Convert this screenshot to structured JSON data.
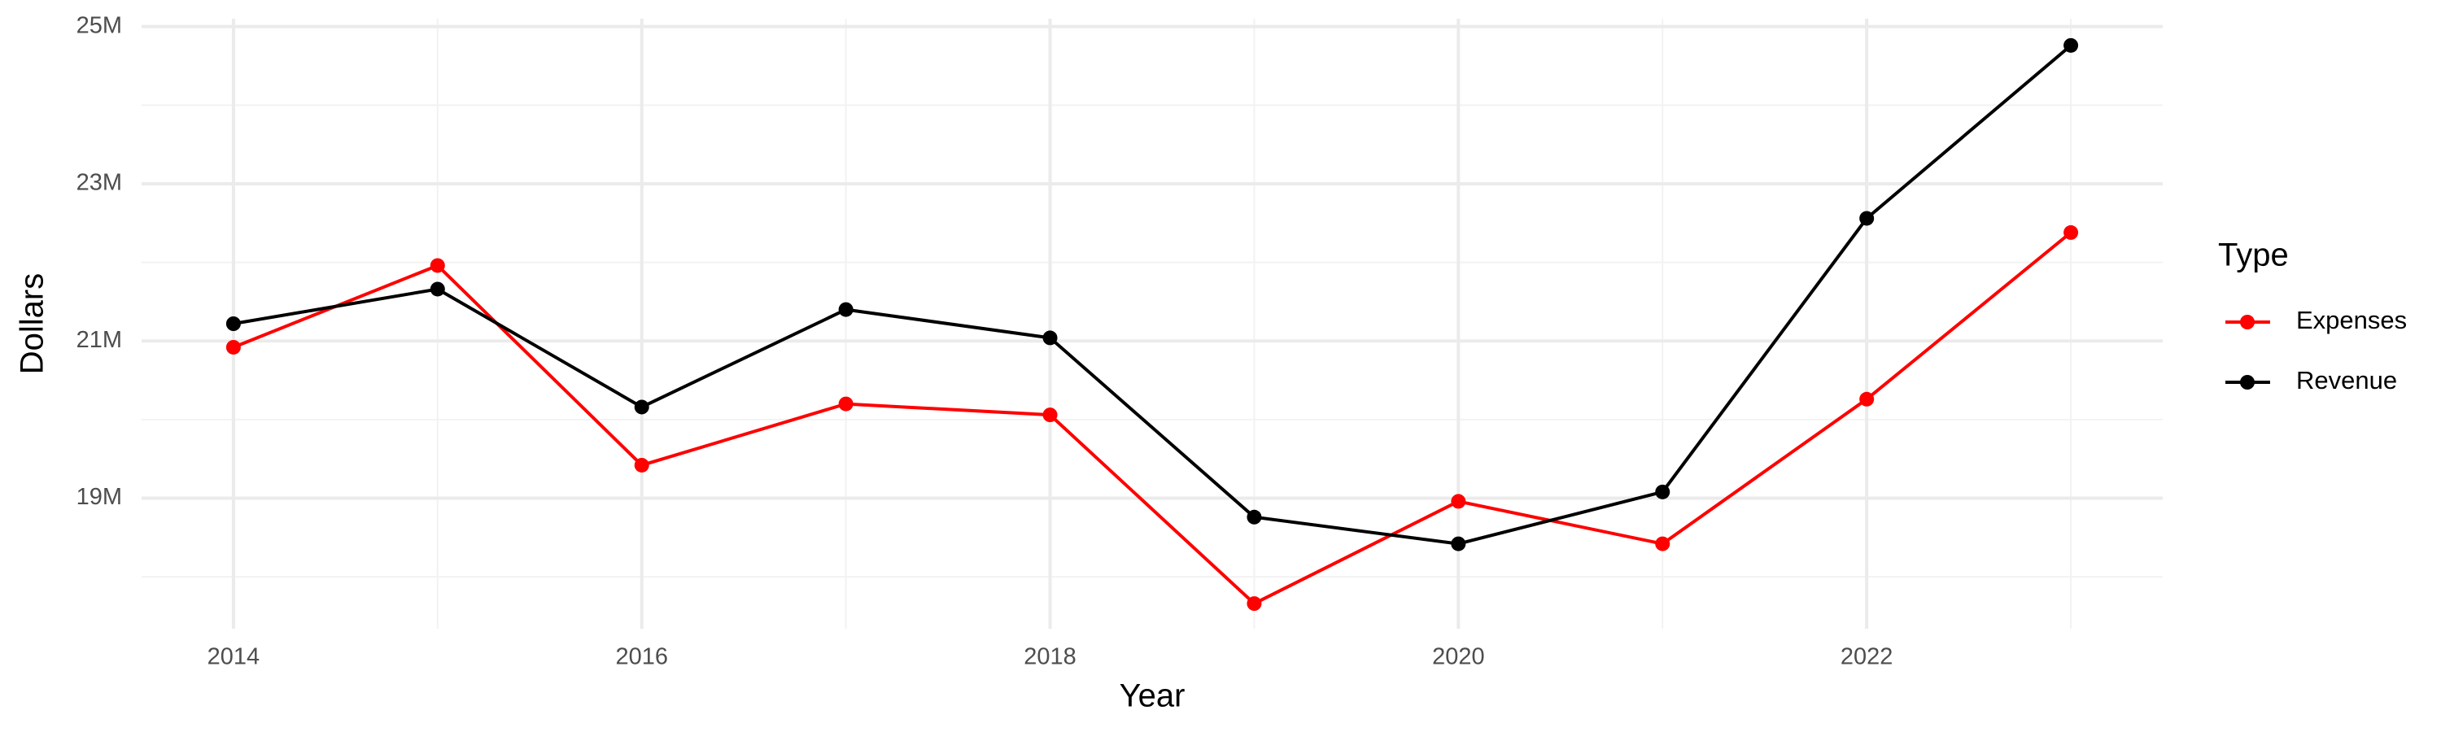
{
  "chart_data": {
    "type": "line",
    "x_label": "Year",
    "y_label": "Dollars",
    "legend_title": "Type",
    "x": [
      2014,
      2015,
      2016,
      2017,
      2018,
      2019,
      2020,
      2021,
      2022,
      2023
    ],
    "series": [
      {
        "name": "Expenses",
        "color": "#ff0000",
        "values": [
          20920000,
          21960000,
          19420000,
          20200000,
          20060000,
          17660000,
          18960000,
          18420000,
          20260000,
          22380000
        ]
      },
      {
        "name": "Revenue",
        "color": "#000000",
        "values": [
          21220000,
          21660000,
          20160000,
          21400000,
          21040000,
          18760000,
          18420000,
          19080000,
          22560000,
          24760000
        ]
      }
    ],
    "xlim": [
      2013.55,
      2023.45
    ],
    "xticks": [
      2014,
      2016,
      2018,
      2020,
      2022
    ],
    "x_minor_ticks": [
      2015,
      2017,
      2019,
      2021,
      2023
    ],
    "ylim": [
      17340000,
      25100000
    ],
    "yticks": [
      {
        "value": 19000000,
        "label": "19M"
      },
      {
        "value": 21000000,
        "label": "21M"
      },
      {
        "value": 23000000,
        "label": "23M"
      },
      {
        "value": 25000000,
        "label": "25M"
      }
    ],
    "y_minor_ticks": [
      18000000,
      20000000,
      22000000,
      24000000
    ],
    "grid": true,
    "legend": "right"
  }
}
